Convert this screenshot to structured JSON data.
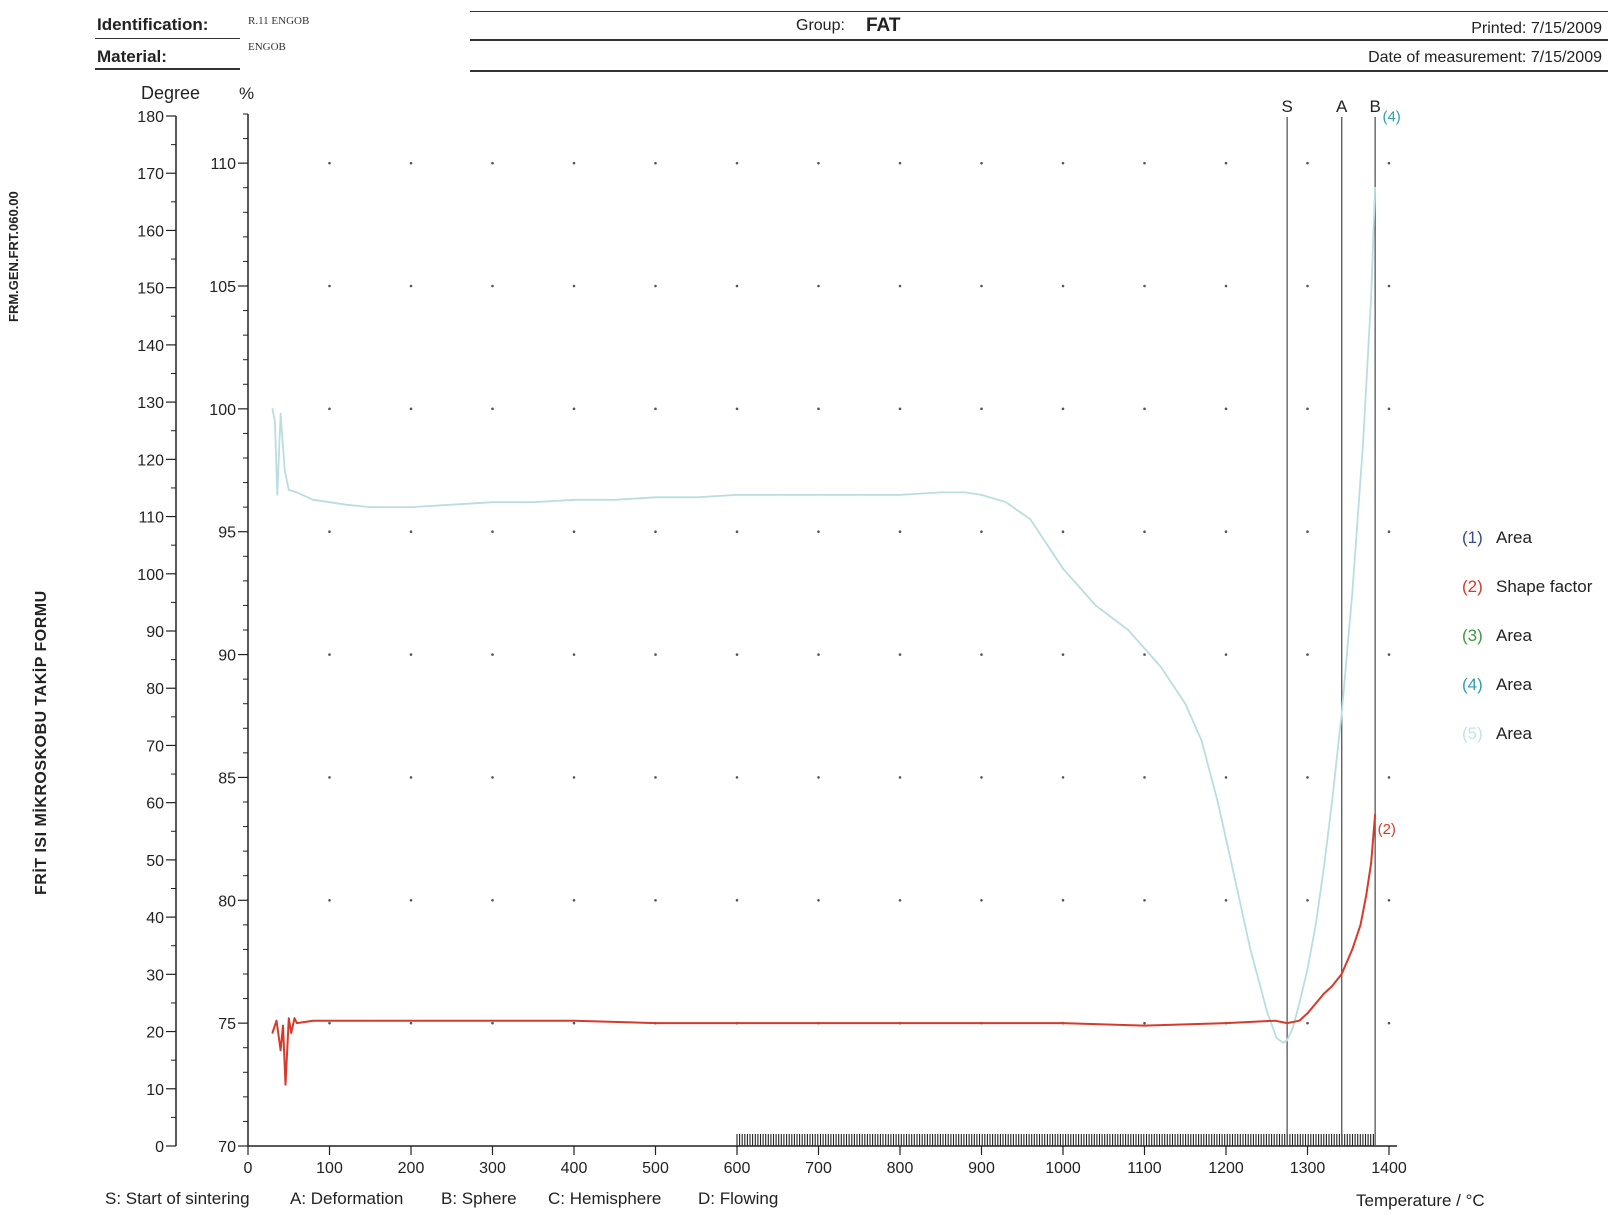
{
  "header": {
    "identification_label": "Identification:",
    "identification_value": "R.11 ENGOB",
    "material_label": "Material:",
    "material_value": "ENGOB",
    "group_label": "Group:",
    "group_value": "FAT",
    "printed": "Printed: 7/15/2009",
    "date_measurement": "Date of measurement: 7/15/2009"
  },
  "side_text": {
    "form_code": "FRM.GEN.FRT.060.00",
    "form_title": "FRİT ISI MİKROSKOBU TAKİP FORMU"
  },
  "footer": {
    "items": [
      "S: Start of sintering",
      "A: Deformation",
      "B: Sphere",
      "C: Hemisphere",
      "D: Flowing"
    ]
  },
  "legend": {
    "items": [
      {
        "num": "(1)",
        "label": "Area",
        "color": "#3a4a8a"
      },
      {
        "num": "(2)",
        "label": "Shape factor",
        "color": "#d63a2a"
      },
      {
        "num": "(3)",
        "label": "Area",
        "color": "#3d9a3d"
      },
      {
        "num": "(4)",
        "label": "Area",
        "color": "#2e9fb0"
      },
      {
        "num": "(5)",
        "label": "Area",
        "color": "#c3e4e6"
      }
    ]
  },
  "chart_data": {
    "type": "line",
    "xlabel": "Temperature / °C",
    "x_ticks": [
      0,
      100,
      200,
      300,
      400,
      500,
      600,
      700,
      800,
      900,
      1000,
      1100,
      1200,
      1300,
      1400
    ],
    "xlim": [
      0,
      1400
    ],
    "y_left_label": "Degree",
    "y_left_ticks": [
      0,
      10,
      20,
      30,
      40,
      50,
      60,
      70,
      80,
      90,
      100,
      110,
      120,
      130,
      140,
      150,
      160,
      170,
      180
    ],
    "y_left_lim": [
      0,
      180
    ],
    "y_right_label": "%",
    "y_right_ticks": [
      70,
      75,
      80,
      85,
      90,
      95,
      100,
      105,
      110
    ],
    "y_right_lim": [
      70,
      112
    ],
    "grid": "dotted",
    "markers": [
      {
        "label": "S",
        "x": 1275
      },
      {
        "label": "A",
        "x": 1342
      },
      {
        "label": "B",
        "x": 1383
      }
    ],
    "series": [
      {
        "id": "1",
        "axis": "percent",
        "color": "#b9dedd",
        "x": [
          30,
          33,
          36,
          40,
          45,
          50,
          60,
          80,
          100,
          120,
          150,
          200,
          250,
          300,
          350,
          400,
          450,
          500,
          550,
          600,
          650,
          700,
          750,
          800,
          850,
          880,
          900,
          930,
          960,
          1000,
          1040,
          1080,
          1120,
          1150,
          1170,
          1190,
          1210,
          1230,
          1250,
          1262,
          1270,
          1275,
          1282,
          1290,
          1300,
          1310,
          1320,
          1330,
          1342,
          1355,
          1368,
          1378,
          1383
        ],
        "y": [
          100,
          99.5,
          96.5,
          99.8,
          97.5,
          96.7,
          96.6,
          96.3,
          96.2,
          96.1,
          96.0,
          96.0,
          96.1,
          96.2,
          96.2,
          96.3,
          96.3,
          96.4,
          96.4,
          96.5,
          96.5,
          96.5,
          96.5,
          96.5,
          96.6,
          96.6,
          96.5,
          96.2,
          95.5,
          93.5,
          92.0,
          91.0,
          89.5,
          88.0,
          86.5,
          84.0,
          81.0,
          78.0,
          75.5,
          74.4,
          74.2,
          74.3,
          74.8,
          75.8,
          77.2,
          79.0,
          81.3,
          84.0,
          87.6,
          92.5,
          98.5,
          104.5,
          109.0
        ]
      },
      {
        "id": "2",
        "axis": "percent",
        "color": "#d63a2a",
        "x": [
          30,
          35,
          40,
          43,
          46,
          50,
          53,
          57,
          60,
          80,
          100,
          150,
          200,
          300,
          400,
          500,
          600,
          700,
          800,
          900,
          1000,
          1100,
          1200,
          1260,
          1275,
          1290,
          1300,
          1310,
          1320,
          1330,
          1342,
          1355,
          1365,
          1372,
          1378,
          1383
        ],
        "y": [
          74.6,
          75.1,
          73.9,
          74.9,
          72.5,
          75.2,
          74.6,
          75.2,
          75.0,
          75.1,
          75.1,
          75.1,
          75.1,
          75.1,
          75.1,
          75.0,
          75.0,
          75.0,
          75.0,
          75.0,
          75.0,
          74.9,
          75.0,
          75.1,
          75.0,
          75.1,
          75.4,
          75.8,
          76.2,
          76.5,
          77.0,
          78.0,
          79.0,
          80.2,
          81.5,
          83.5
        ]
      }
    ],
    "annotations": [
      {
        "text": "(2)",
        "x": 1386,
        "y": 82.7,
        "color": "#d63a2a"
      },
      {
        "text": "(4)",
        "x": 1392,
        "y": 111.7,
        "color": "#2e9fb0"
      }
    ]
  }
}
